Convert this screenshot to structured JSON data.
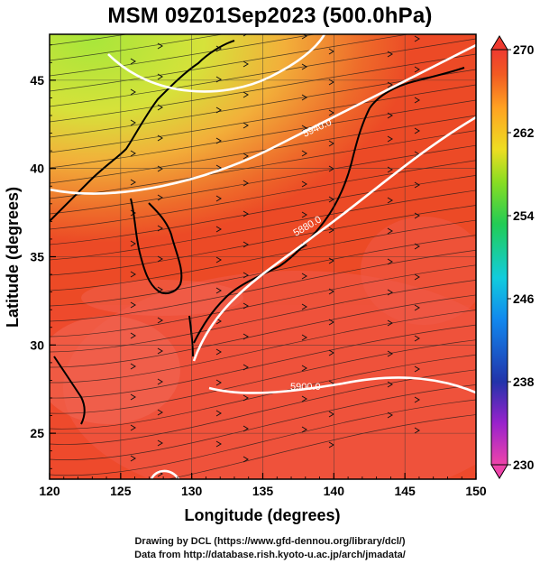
{
  "title": "MSM 09Z01Sep2023 (500.0hPa)",
  "map": {
    "x_axis": {
      "label": "Longitude (degrees)",
      "range": [
        120,
        150
      ],
      "ticks": [
        "120",
        "125",
        "130",
        "135",
        "140",
        "145",
        "150"
      ]
    },
    "y_axis": {
      "label": "Latitude  (degrees)",
      "range": [
        22.4,
        47.6
      ],
      "ticks": [
        "25",
        "30",
        "35",
        "40",
        "45"
      ]
    },
    "contours": [
      {
        "value": "5940.0"
      },
      {
        "value": "5880.0"
      },
      {
        "value": "5900.0"
      }
    ],
    "grid": true
  },
  "colorbar": {
    "min": 230,
    "max": 270,
    "labels": [
      "270",
      "262",
      "254",
      "246",
      "238",
      "230"
    ],
    "colors": [
      "#ee4488",
      "#aa22cc",
      "#2233bb",
      "#11aaee",
      "#22cc66",
      "#88dd22",
      "#eeee22",
      "#ffaa22",
      "#ee4422",
      "#ee3333"
    ]
  },
  "footer": {
    "line1": "Drawing by DCL (https://www.gfd-dennou.org/library/dcl/)",
    "line2": "Data from http://database.rish.kyoto-u.ac.jp/arch/jmadata/"
  }
}
